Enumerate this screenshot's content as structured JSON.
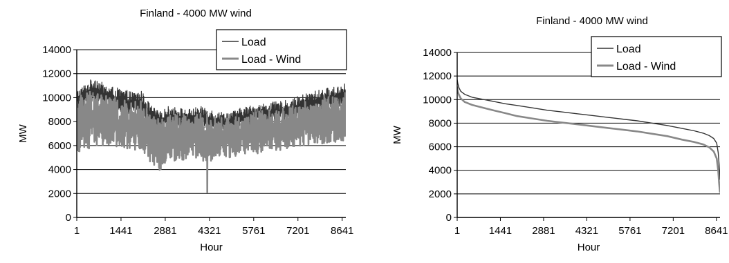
{
  "chart_data": [
    {
      "type": "line",
      "title": "Finland - 4000 MW wind",
      "xlabel": "Hour",
      "ylabel": "MW",
      "xlim": [
        1,
        8760
      ],
      "ylim": [
        0,
        14000
      ],
      "yticks": [
        0,
        2000,
        4000,
        6000,
        8000,
        10000,
        12000,
        14000
      ],
      "xticks": [
        1,
        1441,
        2881,
        4321,
        5761,
        7201,
        8641
      ],
      "grid": true,
      "legend_position": "top-right",
      "series": [
        {
          "name": "Load",
          "color": "#333333",
          "x": [
            1,
            300,
            600,
            900,
            1200,
            1500,
            1800,
            2100,
            2400,
            2700,
            3000,
            3300,
            3600,
            3900,
            4200,
            4500,
            4800,
            5100,
            5400,
            5700,
            6000,
            6300,
            6600,
            6900,
            7200,
            7500,
            7800,
            8100,
            8400,
            8760
          ],
          "high": [
            10600,
            11200,
            11800,
            11100,
            10900,
            10700,
            10500,
            10600,
            9400,
            8800,
            9300,
            9200,
            9000,
            9200,
            9300,
            8900,
            8800,
            8900,
            9200,
            9400,
            9500,
            9600,
            9700,
            9800,
            10100,
            10400,
            10600,
            10800,
            10900,
            11300
          ],
          "low": [
            8800,
            9400,
            9600,
            9200,
            8900,
            8700,
            8500,
            8400,
            7800,
            7200,
            7600,
            7500,
            7400,
            7400,
            7300,
            7200,
            7100,
            7200,
            7400,
            7600,
            7700,
            7800,
            8000,
            8100,
            8300,
            8500,
            8700,
            8900,
            9000,
            9400
          ]
        },
        {
          "name": "Load - Wind",
          "color": "#888888",
          "x": [
            1,
            300,
            600,
            900,
            1200,
            1500,
            1800,
            2100,
            2400,
            2700,
            3000,
            3300,
            3600,
            3900,
            4200,
            4500,
            4800,
            5100,
            5400,
            5700,
            6000,
            6300,
            6600,
            6900,
            7200,
            7500,
            7800,
            8100,
            8400,
            8760
          ],
          "high": [
            10200,
            10600,
            10800,
            10300,
            10000,
            9800,
            9600,
            9800,
            8600,
            8200,
            8700,
            8600,
            8500,
            8600,
            8700,
            8400,
            8300,
            8400,
            8600,
            8800,
            8900,
            9000,
            9100,
            9200,
            9500,
            9700,
            9900,
            10100,
            10200,
            10500
          ],
          "low": [
            5600,
            5000,
            6000,
            5800,
            5600,
            5400,
            5500,
            5700,
            4600,
            3900,
            4800,
            4700,
            4900,
            5000,
            3800,
            5000,
            4900,
            5100,
            5200,
            5400,
            5300,
            5500,
            5600,
            5700,
            5800,
            5900,
            6000,
            6100,
            6200,
            6400
          ],
          "min_point": {
            "x": 4250,
            "y": 2100
          }
        }
      ]
    },
    {
      "type": "line",
      "title": "Finland - 4000 MW wind",
      "xlabel": "Hour",
      "ylabel": "MW",
      "xlim": [
        1,
        8760
      ],
      "ylim": [
        0,
        14000
      ],
      "yticks": [
        0,
        2000,
        4000,
        6000,
        8000,
        10000,
        12000,
        14000
      ],
      "xticks": [
        1,
        1441,
        2881,
        4321,
        5761,
        7201,
        8641
      ],
      "grid": true,
      "legend_position": "top-right",
      "series": [
        {
          "name": "Load",
          "color": "#333333",
          "x": [
            1,
            20,
            60,
            120,
            250,
            500,
            800,
            1200,
            1600,
            2000,
            2500,
            3000,
            3500,
            4000,
            4500,
            5000,
            5500,
            6000,
            6500,
            7000,
            7500,
            7900,
            8200,
            8400,
            8550,
            8650,
            8700,
            8730,
            8760
          ],
          "y": [
            11700,
            11400,
            11000,
            10700,
            10450,
            10200,
            10050,
            9850,
            9650,
            9500,
            9300,
            9100,
            8950,
            8800,
            8650,
            8500,
            8350,
            8200,
            8000,
            7800,
            7550,
            7350,
            7150,
            6950,
            6700,
            6300,
            5500,
            4500,
            3200
          ]
        },
        {
          "name": "Load - Wind",
          "color": "#888888",
          "x": [
            1,
            20,
            60,
            120,
            250,
            500,
            800,
            1200,
            1600,
            2000,
            2500,
            3000,
            3500,
            4000,
            4500,
            5000,
            5500,
            6000,
            6500,
            7000,
            7500,
            7900,
            8200,
            8400,
            8550,
            8650,
            8700,
            8730,
            8760
          ],
          "y": [
            11100,
            10700,
            10400,
            10100,
            9800,
            9550,
            9350,
            9100,
            8850,
            8600,
            8400,
            8200,
            8050,
            7900,
            7750,
            7600,
            7450,
            7300,
            7100,
            6900,
            6600,
            6400,
            6200,
            5950,
            5600,
            5000,
            4000,
            2900,
            2100
          ]
        }
      ]
    }
  ]
}
